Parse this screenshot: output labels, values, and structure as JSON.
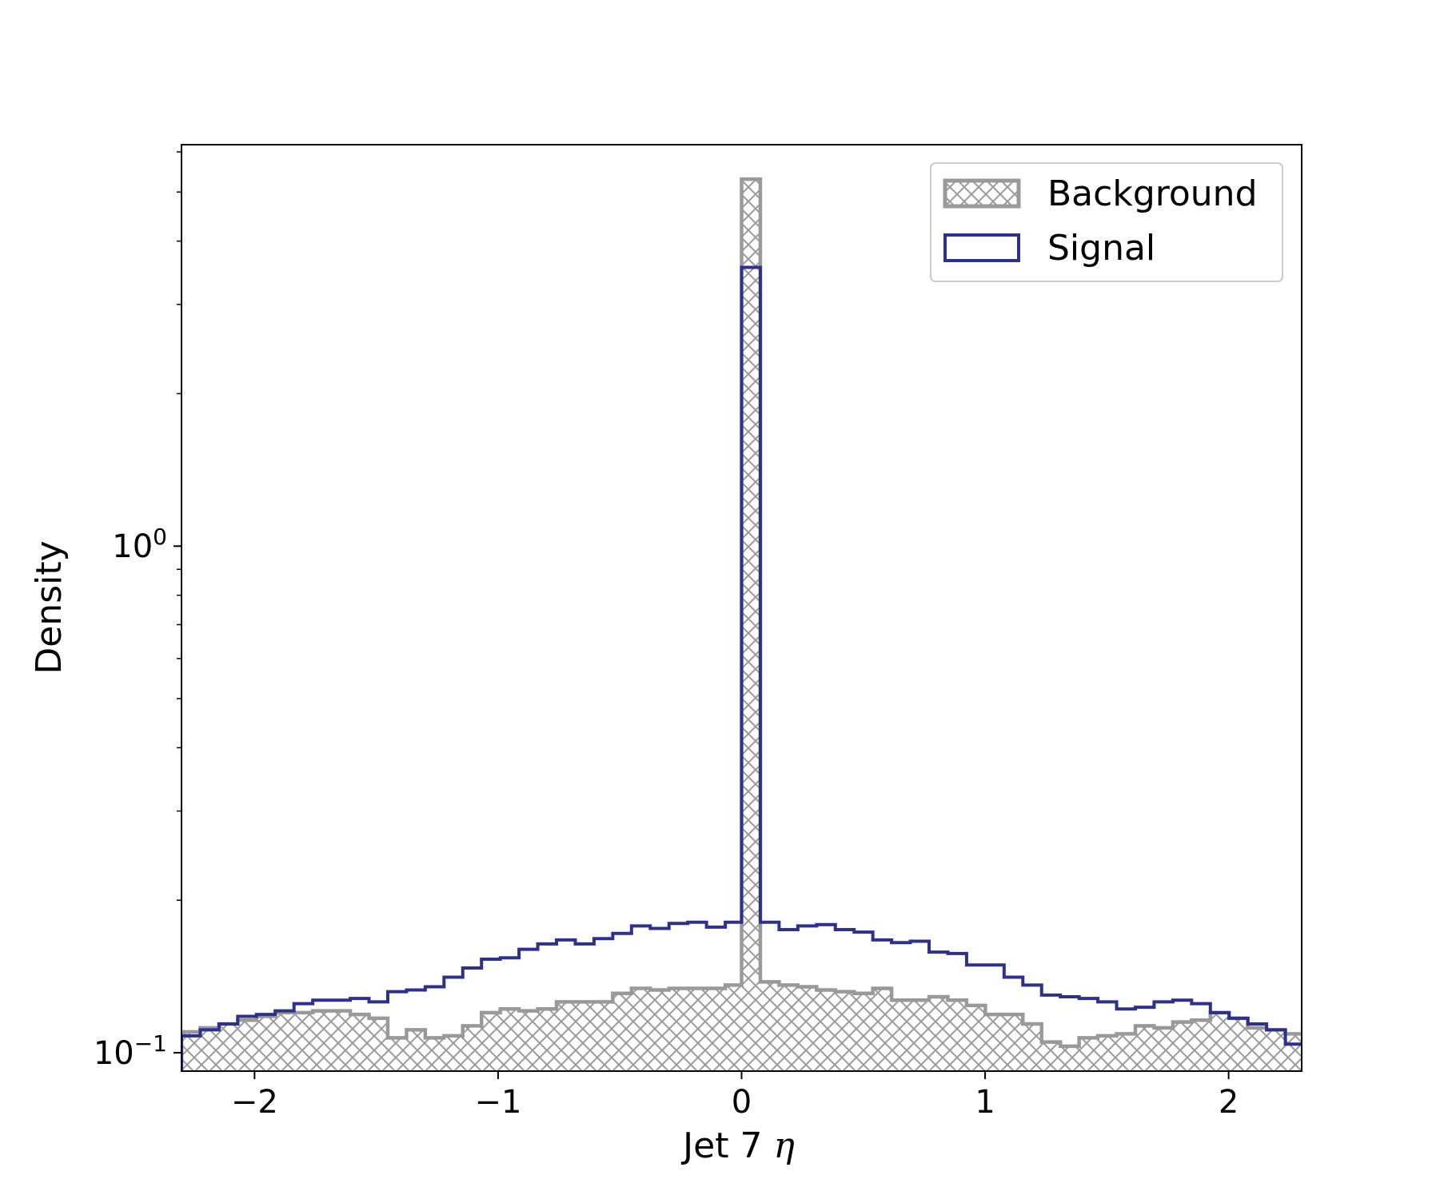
{
  "chart_data": {
    "type": "histogram",
    "xlabel": "Jet 7",
    "xlabel_symbol": "η",
    "ylabel": "Density",
    "y_scale": "log",
    "xlim": [
      -2.3,
      2.3
    ],
    "ylim": [
      0.092,
      6.2
    ],
    "x_ticks": [
      {
        "value": -2,
        "label": "−2"
      },
      {
        "value": -1,
        "label": "−1"
      },
      {
        "value": 0,
        "label": "0"
      },
      {
        "value": 1,
        "label": "1"
      },
      {
        "value": 2,
        "label": "2"
      }
    ],
    "y_ticks": [
      {
        "value": 1,
        "base": "10",
        "exp": "0"
      },
      {
        "value": 0.1,
        "base": "10",
        "exp": "−1"
      }
    ],
    "legend": {
      "position": "top-right"
    },
    "bin_edges": [
      -2.3,
      -2.223,
      -2.146,
      -2.069,
      -1.992,
      -1.915,
      -1.838,
      -1.761,
      -1.684,
      -1.607,
      -1.53,
      -1.453,
      -1.376,
      -1.299,
      -1.222,
      -1.145,
      -1.068,
      -0.991,
      -0.914,
      -0.837,
      -0.76,
      -0.683,
      -0.606,
      -0.529,
      -0.452,
      -0.375,
      -0.298,
      -0.221,
      -0.144,
      -0.067,
      0.0,
      0.077,
      0.154,
      0.231,
      0.308,
      0.385,
      0.462,
      0.539,
      0.616,
      0.693,
      0.77,
      0.847,
      0.924,
      1.001,
      1.078,
      1.155,
      1.232,
      1.309,
      1.386,
      1.463,
      1.54,
      1.617,
      1.694,
      1.771,
      1.848,
      1.925,
      2.002,
      2.079,
      2.156,
      2.233,
      2.31
    ],
    "series": [
      {
        "name": "Background",
        "color": "#999999",
        "style": "hatched",
        "values": [
          0.11,
          0.112,
          0.114,
          0.116,
          0.118,
          0.12,
          0.12,
          0.121,
          0.121,
          0.119,
          0.117,
          0.107,
          0.111,
          0.107,
          0.108,
          0.113,
          0.12,
          0.122,
          0.121,
          0.122,
          0.126,
          0.126,
          0.126,
          0.131,
          0.134,
          0.133,
          0.134,
          0.134,
          0.134,
          0.136,
          5.3,
          0.138,
          0.136,
          0.135,
          0.133,
          0.132,
          0.131,
          0.134,
          0.127,
          0.127,
          0.129,
          0.127,
          0.124,
          0.119,
          0.119,
          0.114,
          0.105,
          0.103,
          0.107,
          0.108,
          0.109,
          0.113,
          0.112,
          0.115,
          0.116,
          0.12,
          0.117,
          0.112,
          0.111,
          0.109
        ]
      },
      {
        "name": "Signal",
        "color": "#2b318c",
        "style": "step",
        "values": [
          0.108,
          0.111,
          0.114,
          0.118,
          0.119,
          0.121,
          0.125,
          0.127,
          0.127,
          0.128,
          0.126,
          0.132,
          0.133,
          0.135,
          0.141,
          0.147,
          0.153,
          0.154,
          0.16,
          0.164,
          0.167,
          0.164,
          0.168,
          0.172,
          0.178,
          0.176,
          0.18,
          0.181,
          0.177,
          0.181,
          3.55,
          0.181,
          0.175,
          0.178,
          0.179,
          0.175,
          0.173,
          0.167,
          0.165,
          0.166,
          0.158,
          0.157,
          0.149,
          0.149,
          0.141,
          0.136,
          0.13,
          0.129,
          0.128,
          0.126,
          0.122,
          0.123,
          0.126,
          0.127,
          0.125,
          0.12,
          0.117,
          0.114,
          0.111,
          0.104
        ]
      }
    ]
  }
}
